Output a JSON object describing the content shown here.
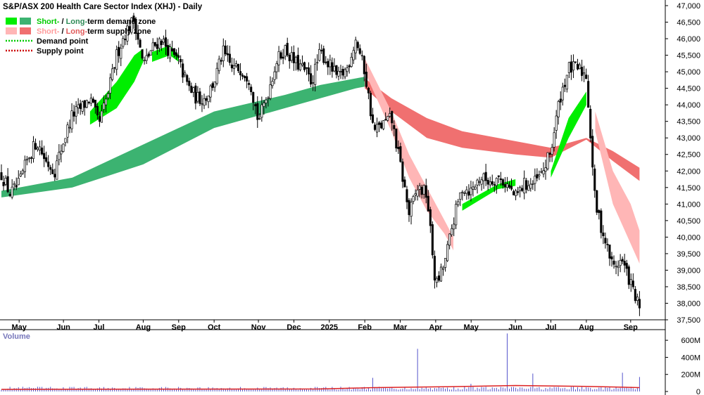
{
  "chart_data": [
    {
      "type": "candlestick",
      "title": "S&P/ASX 200 Health Care Sector Index (XHJ) - Daily",
      "ylim": [
        37500,
        47000
      ],
      "y_ticks": [
        37500,
        38000,
        38500,
        39000,
        39500,
        40000,
        40500,
        41000,
        41500,
        42000,
        42500,
        43000,
        43500,
        44000,
        44500,
        45000,
        45500,
        46000,
        46500,
        47000
      ],
      "y_tick_labels": [
        "37,500",
        "38,000",
        "38,500",
        "39,000",
        "39,500",
        "40,000",
        "40,500",
        "41,000",
        "41,500",
        "42,000",
        "42,500",
        "43,000",
        "43,500",
        "44,000",
        "44,500",
        "45,000",
        "45,500",
        "46,000",
        "46,500",
        "47,000"
      ],
      "x_labels": [
        {
          "week": 2,
          "label": "May"
        },
        {
          "week": 7,
          "label": "Jun"
        },
        {
          "week": 11,
          "label": "Jul"
        },
        {
          "week": 16,
          "label": "Aug"
        },
        {
          "week": 20,
          "label": "Sep"
        },
        {
          "week": 24,
          "label": "Oct"
        },
        {
          "week": 29,
          "label": "Nov"
        },
        {
          "week": 33,
          "label": "Dec"
        },
        {
          "week": 37,
          "label": "2025"
        },
        {
          "week": 41,
          "label": "Feb"
        },
        {
          "week": 45,
          "label": "Mar"
        },
        {
          "week": 49,
          "label": "Apr"
        },
        {
          "week": 53,
          "label": "May"
        },
        {
          "week": 58,
          "label": "Jun"
        },
        {
          "week": 62,
          "label": "Jul"
        },
        {
          "week": 66,
          "label": "Aug"
        },
        {
          "week": 71,
          "label": "Sep"
        }
      ],
      "x_max_week": 73,
      "legend": [
        {
          "prefix": "Short-",
          "sep": " / ",
          "long": "Long-",
          "text": "term demand zone",
          "colors": [
            "#00ee00",
            "#3cb371"
          ],
          "prefix_color": "#00cc00",
          "long_color": "#2e8b57"
        },
        {
          "prefix": "Short-",
          "sep": " / ",
          "long": "Long-",
          "text": "term supply zone",
          "colors": [
            "#ffb6b6",
            "#f07070"
          ],
          "prefix_color": "#ff9c9c",
          "long_color": "#e05a5a"
        },
        {
          "text": "Demand point",
          "color": "#00cc00"
        },
        {
          "text": "Supply point",
          "color": "#cc0000"
        }
      ],
      "path": [
        [
          0,
          41900
        ],
        [
          1,
          41300
        ],
        [
          2,
          41600
        ],
        [
          3,
          42400
        ],
        [
          4,
          42900
        ],
        [
          5,
          42300
        ],
        [
          6,
          42000
        ],
        [
          7,
          42900
        ],
        [
          8,
          43700
        ],
        [
          9,
          43900
        ],
        [
          10,
          44200
        ],
        [
          11,
          43400
        ],
        [
          12,
          44300
        ],
        [
          13,
          45500
        ],
        [
          14,
          46200
        ],
        [
          15,
          46600
        ],
        [
          16,
          45200
        ],
        [
          17,
          45700
        ],
        [
          18,
          46000
        ],
        [
          19,
          45600
        ],
        [
          20,
          45300
        ],
        [
          21,
          44600
        ],
        [
          22,
          44200
        ],
        [
          23,
          44200
        ],
        [
          24,
          44700
        ],
        [
          25,
          45600
        ],
        [
          26,
          45100
        ],
        [
          27,
          45100
        ],
        [
          28,
          44800
        ],
        [
          29,
          43500
        ],
        [
          30,
          44300
        ],
        [
          31,
          45300
        ],
        [
          32,
          45700
        ],
        [
          33,
          45300
        ],
        [
          34,
          45100
        ],
        [
          35,
          44700
        ],
        [
          36,
          45600
        ],
        [
          37,
          45200
        ],
        [
          38,
          44800
        ],
        [
          39,
          45100
        ],
        [
          40,
          46000
        ],
        [
          41,
          45000
        ],
        [
          42,
          43200
        ],
        [
          43,
          43400
        ],
        [
          44,
          43600
        ],
        [
          45,
          42200
        ],
        [
          46,
          40700
        ],
        [
          47,
          41500
        ],
        [
          48,
          41300
        ],
        [
          49,
          38500
        ],
        [
          50,
          39200
        ],
        [
          51,
          40500
        ],
        [
          52,
          41500
        ],
        [
          53,
          41400
        ],
        [
          54,
          41800
        ],
        [
          55,
          41700
        ],
        [
          56,
          41800
        ],
        [
          57,
          41600
        ],
        [
          58,
          41200
        ],
        [
          59,
          41600
        ],
        [
          60,
          41600
        ],
        [
          61,
          41900
        ],
        [
          62,
          42600
        ],
        [
          63,
          44200
        ],
        [
          64,
          45100
        ],
        [
          65,
          45100
        ],
        [
          66,
          44900
        ],
        [
          67,
          41000
        ],
        [
          68,
          40000
        ],
        [
          69,
          39100
        ],
        [
          70,
          39300
        ],
        [
          71,
          38600
        ],
        [
          72,
          37800
        ]
      ],
      "zones": {
        "long_demand": {
          "color": "#3cb371",
          "upper": [
            [
              0,
              41400
            ],
            [
              8,
              41800
            ],
            [
              16,
              42800
            ],
            [
              24,
              43800
            ],
            [
              32,
              44300
            ],
            [
              36,
              44600
            ],
            [
              40,
              44800
            ],
            [
              41,
              44850
            ]
          ],
          "lower": [
            [
              0,
              41200
            ],
            [
              8,
              41500
            ],
            [
              16,
              42200
            ],
            [
              24,
              43300
            ],
            [
              32,
              43900
            ],
            [
              36,
              44200
            ],
            [
              40,
              44500
            ],
            [
              41,
              44550
            ]
          ]
        },
        "long_supply": {
          "color": "#f07070",
          "upper": [
            [
              41,
              44800
            ],
            [
              44,
              44200
            ],
            [
              48,
              43600
            ],
            [
              52,
              43200
            ],
            [
              58,
              42900
            ],
            [
              62,
              42700
            ],
            [
              66,
              43000
            ],
            [
              69,
              42600
            ],
            [
              72,
              42100
            ]
          ],
          "lower": [
            [
              41,
              44500
            ],
            [
              44,
              43800
            ],
            [
              48,
              43000
            ],
            [
              52,
              42700
            ],
            [
              58,
              42500
            ],
            [
              62,
              42400
            ],
            [
              66,
              42950
            ],
            [
              69,
              42300
            ],
            [
              72,
              41700
            ]
          ]
        },
        "short_demand": [
          {
            "color": "#00ee00",
            "upper": [
              [
                10,
                43800
              ],
              [
                13,
                44700
              ],
              [
                15,
                45500
              ],
              [
                16,
                45700
              ]
            ],
            "lower": [
              [
                10,
                43400
              ],
              [
                13,
                43900
              ],
              [
                15,
                44700
              ],
              [
                16,
                45300
              ]
            ]
          },
          {
            "color": "#00ee00",
            "upper": [
              [
                17,
                45600
              ],
              [
                19,
                45800
              ],
              [
                20,
                45500
              ]
            ],
            "lower": [
              [
                17,
                45300
              ],
              [
                19,
                45500
              ],
              [
                20,
                45300
              ]
            ]
          },
          {
            "color": "#00ee00",
            "upper": [
              [
                52,
                41000
              ],
              [
                56,
                41600
              ],
              [
                58,
                41750
              ]
            ],
            "lower": [
              [
                52,
                40800
              ],
              [
                56,
                41450
              ],
              [
                58,
                41550
              ]
            ]
          },
          {
            "color": "#00ee00",
            "upper": [
              [
                62,
                42000
              ],
              [
                64,
                43600
              ],
              [
                66,
                44400
              ]
            ],
            "lower": [
              [
                62,
                41800
              ],
              [
                64,
                43000
              ],
              [
                66,
                44000
              ]
            ]
          }
        ],
        "short_supply": [
          {
            "color": "#ffb6b6",
            "upper": [
              [
                41,
                45400
              ],
              [
                44,
                43800
              ],
              [
                46,
                42500
              ],
              [
                48,
                41500
              ],
              [
                50,
                40500
              ],
              [
                51,
                40000
              ]
            ],
            "lower": [
              [
                41,
                45000
              ],
              [
                44,
                43200
              ],
              [
                46,
                41800
              ],
              [
                48,
                40800
              ],
              [
                50,
                40100
              ],
              [
                51,
                39600
              ]
            ]
          },
          {
            "color": "#ffb6b6",
            "upper": [
              [
                67,
                43800
              ],
              [
                69,
                42000
              ],
              [
                71,
                41000
              ],
              [
                72,
                40200
              ]
            ],
            "lower": [
              [
                67,
                43200
              ],
              [
                69,
                41000
              ],
              [
                71,
                39800
              ],
              [
                72,
                39200
              ]
            ]
          }
        ]
      },
      "volume": {
        "label": "Volume",
        "ylim": [
          0,
          700
        ],
        "y_ticks": [
          0,
          200,
          400,
          600
        ],
        "y_tick_labels": [
          "0",
          "200M",
          "400M",
          "600M"
        ],
        "spikes": [
          [
            42,
            160
          ],
          [
            47,
            500
          ],
          [
            53,
            90
          ],
          [
            57,
            680
          ],
          [
            60,
            210
          ],
          [
            70,
            220
          ],
          [
            72,
            170
          ]
        ],
        "baseline": 40,
        "avg_line": [
          [
            0,
            25
          ],
          [
            20,
            28
          ],
          [
            36,
            30
          ],
          [
            42,
            45
          ],
          [
            50,
            55
          ],
          [
            58,
            70
          ],
          [
            66,
            60
          ],
          [
            72,
            45
          ]
        ]
      }
    }
  ]
}
